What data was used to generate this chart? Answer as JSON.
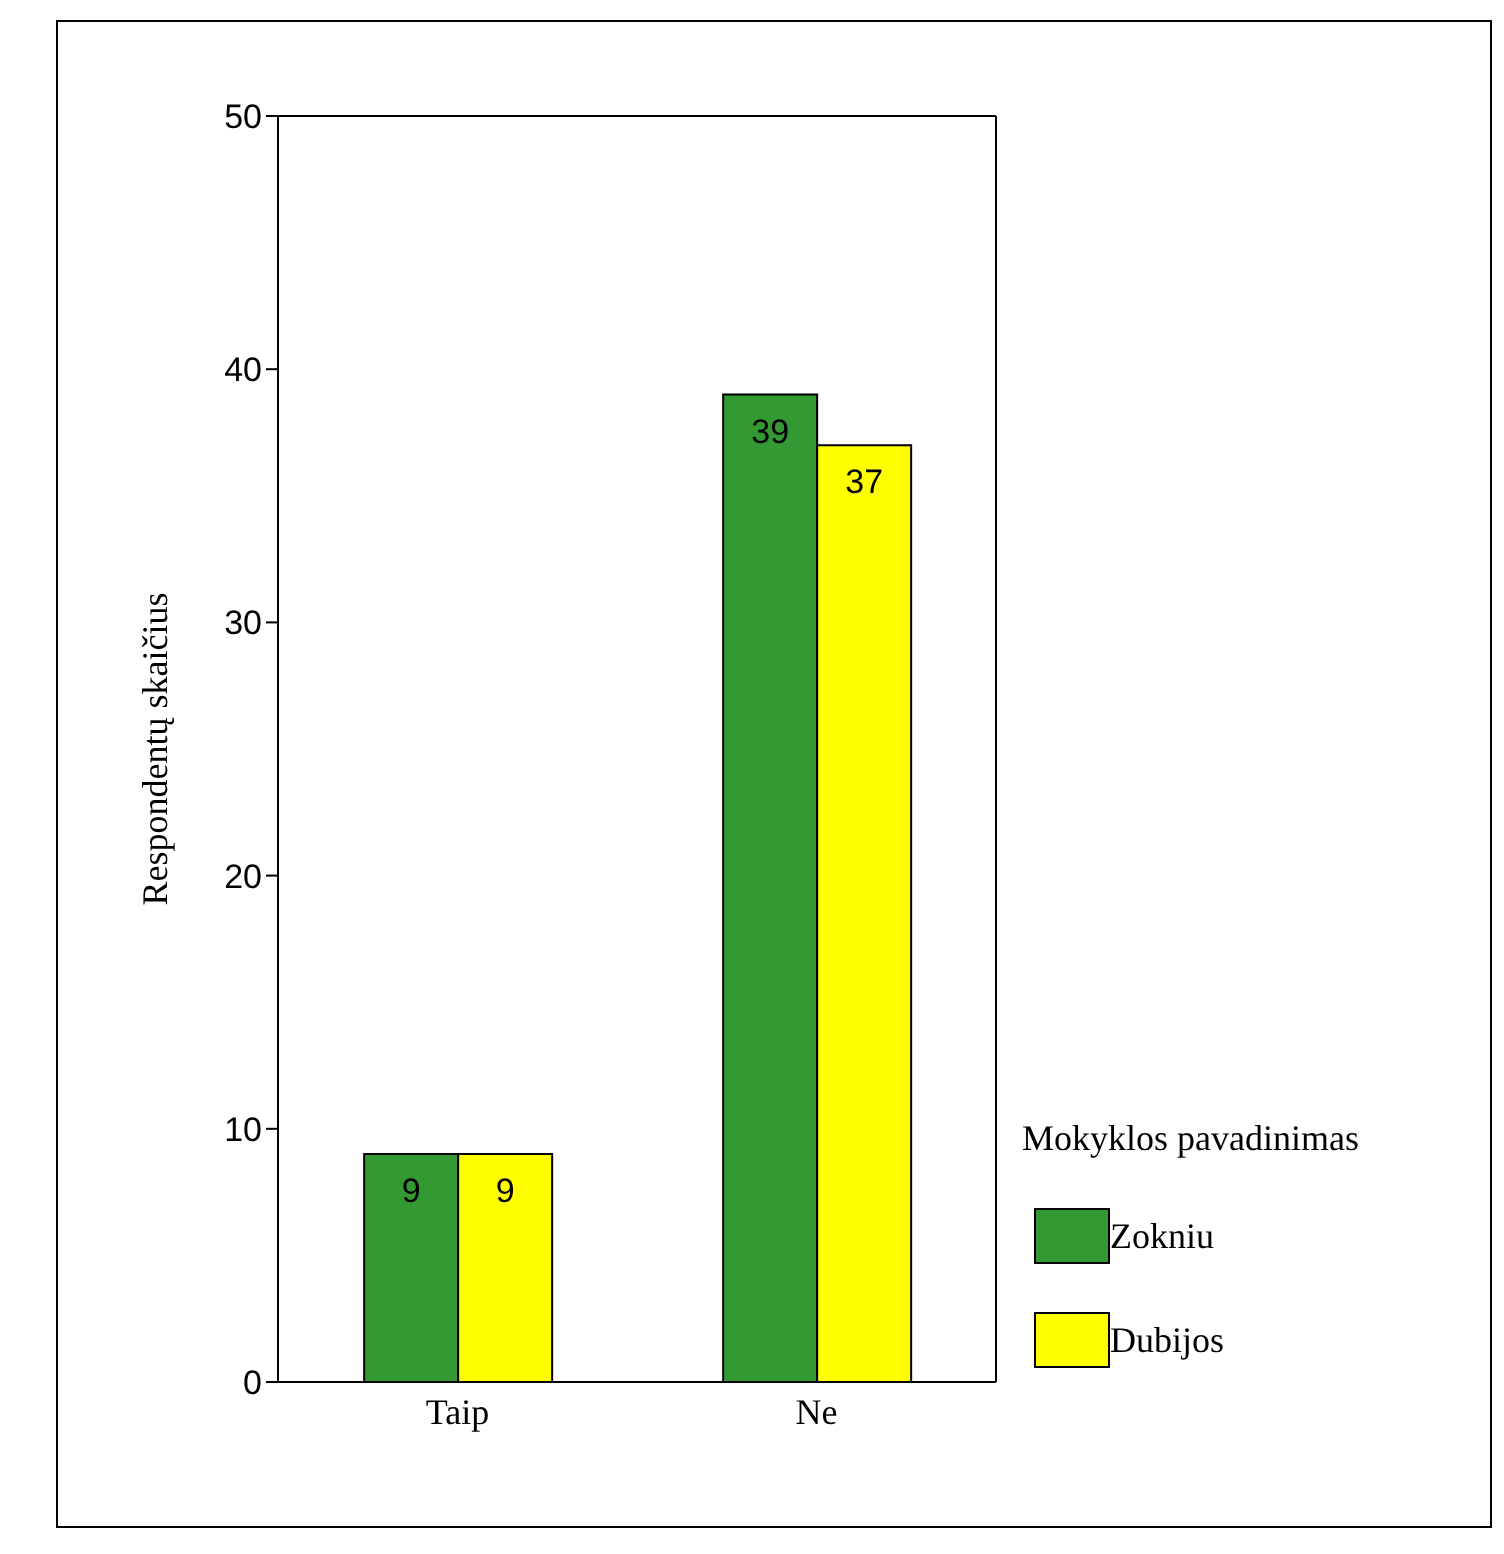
{
  "chart_data": {
    "type": "bar",
    "categories": [
      "Taip",
      "Ne"
    ],
    "series": [
      {
        "name": "Zokniu",
        "color": "#339933",
        "values": [
          9,
          39
        ]
      },
      {
        "name": "Dubijos",
        "color": "#ffff00",
        "values": [
          9,
          37
        ]
      }
    ],
    "ylabel": "Respondentų skaičius",
    "legend_title": "Mokyklos pavadinimas",
    "legend": "right",
    "ylim": [
      0,
      50
    ],
    "yticks": [
      0,
      10,
      20,
      30,
      40,
      50
    ],
    "data_labels": true,
    "grid": false
  }
}
